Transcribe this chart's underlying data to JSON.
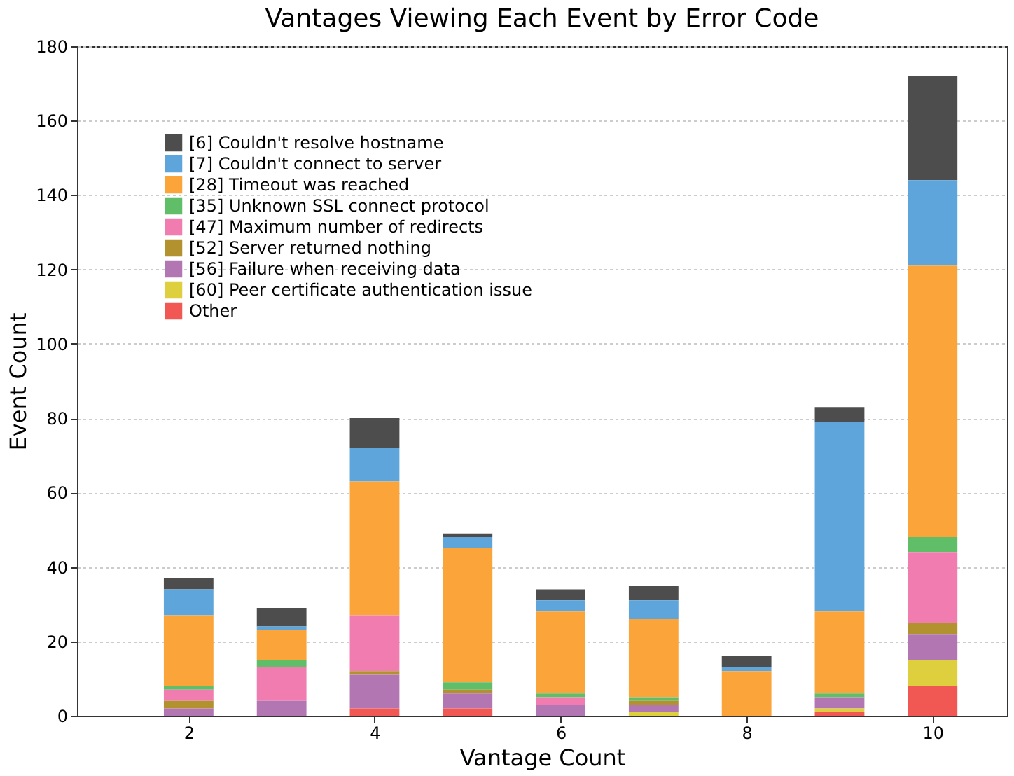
{
  "chart_data": {
    "type": "bar",
    "title": "Vantages Viewing Each Event by Error Code",
    "xlabel": "Vantage Count",
    "ylabel": "Event Count",
    "x": [
      2,
      3,
      4,
      5,
      6,
      7,
      8,
      9,
      10
    ],
    "xlim": [
      0.8,
      10.8
    ],
    "xticks": [
      2,
      4,
      6,
      8,
      10
    ],
    "ylim": [
      0,
      180
    ],
    "yticks": [
      0,
      20,
      40,
      60,
      80,
      100,
      120,
      140,
      160,
      180
    ],
    "stacked": true,
    "grid": "y",
    "legend": "top left",
    "series": [
      {
        "name": "[6] Couldn't resolve hostname",
        "color": "#4d4d4d",
        "values": [
          3,
          5,
          8,
          1,
          3,
          4,
          3,
          4,
          28
        ]
      },
      {
        "name": "[7] Couldn't connect to server",
        "color": "#5da5da",
        "values": [
          7,
          1,
          9,
          3,
          3,
          5,
          1,
          51,
          23
        ]
      },
      {
        "name": "[28] Timeout was reached",
        "color": "#faa43a",
        "values": [
          19,
          8,
          36,
          36,
          22,
          21,
          12,
          22,
          73
        ]
      },
      {
        "name": "[35] Unknown SSL connect protocol",
        "color": "#60bd68",
        "values": [
          1,
          2,
          0,
          2,
          1,
          1,
          0,
          1,
          4
        ]
      },
      {
        "name": "[47] Maximum number of redirects",
        "color": "#f17cb0",
        "values": [
          3,
          9,
          15,
          0,
          2,
          0,
          0,
          0,
          19
        ]
      },
      {
        "name": "[52] Server returned nothing",
        "color": "#b2912f",
        "values": [
          2,
          0,
          1,
          1,
          0,
          1,
          0,
          0,
          3
        ]
      },
      {
        "name": "[56] Failure when receiving data",
        "color": "#b276b2",
        "values": [
          2,
          4,
          9,
          4,
          3,
          2,
          0,
          3,
          7
        ]
      },
      {
        "name": "[60] Peer certificate authentication issue",
        "color": "#decf3f",
        "values": [
          0,
          0,
          0,
          0,
          0,
          1,
          0,
          1,
          7
        ]
      },
      {
        "name": "Other",
        "color": "#f15854",
        "values": [
          0,
          0,
          2,
          2,
          0,
          0,
          0,
          1,
          8
        ]
      }
    ]
  }
}
